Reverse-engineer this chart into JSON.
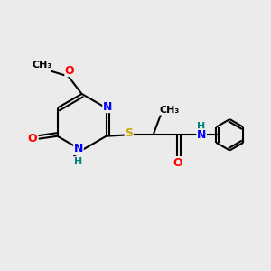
{
  "bg_color": "#ebebeb",
  "bond_color": "#000000",
  "atom_colors": {
    "N": "#0000ff",
    "O": "#ff0000",
    "S": "#ccaa00",
    "NH": "#008080",
    "H": "#008080",
    "C": "#000000"
  },
  "font_size": 9,
  "fig_size": [
    3.0,
    3.0
  ],
  "dpi": 100,
  "xlim": [
    0,
    10
  ],
  "ylim": [
    0,
    10
  ]
}
